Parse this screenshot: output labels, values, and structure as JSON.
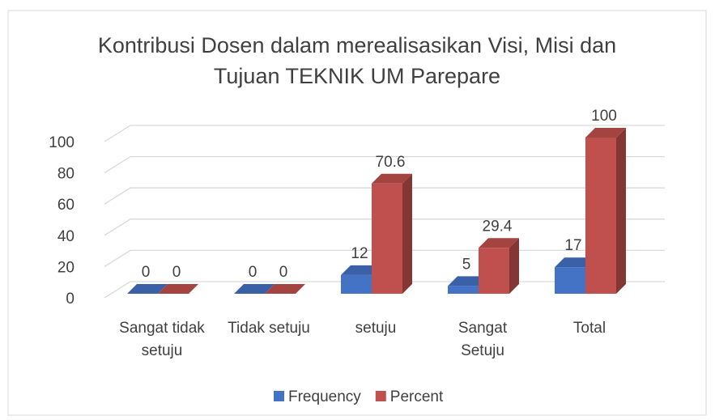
{
  "chart_data": {
    "type": "bar3d",
    "title": "Kontribusi Dosen dalam merealisasikan Visi, Misi dan Tujuan TEKNIK UM Parepare",
    "categories": [
      "Sangat tidak setuju",
      "Tidak setuju",
      "setuju",
      "Sangat Setuju",
      "Total"
    ],
    "series": [
      {
        "name": "Frequency",
        "color": "#4472c4",
        "values": [
          0,
          0,
          12,
          5,
          17
        ]
      },
      {
        "name": "Percent",
        "color": "#c0504d",
        "values": [
          0,
          0,
          70.6,
          29.4,
          100
        ]
      }
    ],
    "ylim": [
      0,
      100
    ],
    "yticks": [
      0,
      20,
      40,
      60,
      80,
      100
    ],
    "grid": true,
    "legend": "bottom"
  }
}
